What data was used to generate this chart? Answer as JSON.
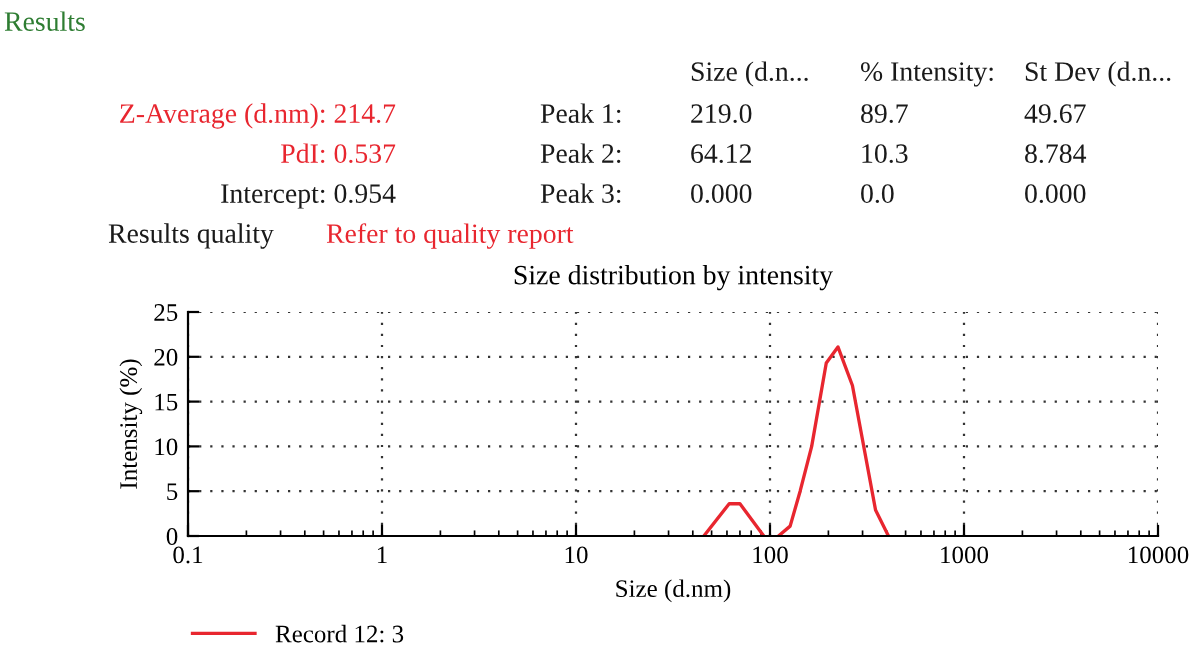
{
  "chart_data": {
    "type": "line",
    "title": "Size distribution by intensity",
    "xlabel": "Size (d.nm)",
    "ylabel": "Intensity (%)",
    "x": [
      45.6,
      61.6,
      70,
      92.9,
      null,
      110.6,
      127,
      143,
      164,
      195,
      224,
      266,
      350,
      408
    ],
    "series": [
      {
        "name": "Record 12: 3",
        "color": "#e8262f",
        "values": [
          0,
          3.6,
          3.6,
          0,
          null,
          0,
          1.1,
          5,
          10,
          19.3,
          21.1,
          16.8,
          2.9,
          0
        ]
      }
    ],
    "log": "x",
    "xlim": [
      0.1,
      10000
    ],
    "xticks": [
      0.1,
      1,
      10,
      100,
      1000,
      10000
    ],
    "ylim": [
      0,
      25
    ],
    "yticks": [
      0,
      5,
      10,
      15,
      20,
      25
    ],
    "grid": true,
    "legend": "bottom left",
    "marker": "none",
    "line_style": "solid",
    "annotations": [
      "Results",
      "Size (d.n...",
      "% Intensity:",
      "St Dev (d.n...",
      "Z-Average (d.nm): 214.7",
      "Peak 1:",
      "219.0",
      "89.7",
      "49.67",
      "PdI: 0.537",
      "Peak 2:",
      "64.12",
      "10.3",
      "8.784",
      "Intercept: 0.954",
      "Peak 3:",
      "0.000",
      "0.0",
      "0.000",
      "Results quality",
      "Refer to quality report"
    ]
  }
}
